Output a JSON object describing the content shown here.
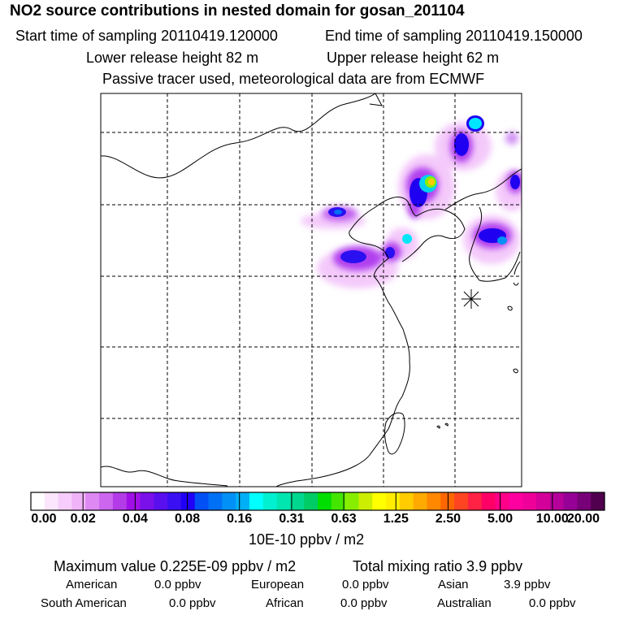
{
  "header": {
    "title": "NO2 source contributions in nested domain for gosan_201104",
    "start_time": "Start time of sampling 20110419.120000",
    "end_time": "End time of sampling 20110419.150000",
    "lower_release": "Lower release height   82 m",
    "upper_release": "Upper release height   62 m",
    "tracer_note": "Passive tracer used, meteorological data are from ECMWF"
  },
  "colorbar": {
    "colors": [
      "#ffffff",
      "#fbe6fd",
      "#f6cdfb",
      "#f0b3f8",
      "#dd88f3",
      "#cc66ee",
      "#b43ce8",
      "#a010e6",
      "#7a10ea",
      "#5a10ee",
      "#3a10f2",
      "#2000f6",
      "#0050f6",
      "#0070f6",
      "#0090f6",
      "#00b0f6",
      "#00ffff",
      "#00f0d0",
      "#00e6b0",
      "#00d890",
      "#00cc66",
      "#00dd00",
      "#44e600",
      "#88ee00",
      "#ccee00",
      "#ffff00",
      "#ffee00",
      "#ffcc00",
      "#ffaa00",
      "#ff8800",
      "#ff6600",
      "#ff4422",
      "#ff2244",
      "#ff0066",
      "#ff0088",
      "#ff00a0",
      "#ee0099",
      "#d4009a",
      "#b5009a",
      "#960096",
      "#780078",
      "#50004e"
    ],
    "ticks": [
      "0.00",
      "0.02",
      "0.04",
      "0.08",
      "0.16",
      "0.31",
      "0.63",
      "1.25",
      "2.50",
      "5.00",
      "10.00",
      "20.00"
    ],
    "units": "10E-10 ppbv / m2"
  },
  "summary": {
    "max_value": "Maximum value  0.225E-09 ppbv / m2",
    "total_mixing": "Total mixing ratio        3.9 ppbv"
  },
  "regions": {
    "american_label": "American",
    "american_value": "0.0 ppbv",
    "european_label": "European",
    "european_value": "0.0 ppbv",
    "asian_label": "Asian",
    "asian_value": "3.9 ppbv",
    "south_american_label": "South American",
    "south_american_value": "0.0 ppbv",
    "african_label": "African",
    "african_value": "0.0 ppbv",
    "australian_label": "Australian",
    "australian_value": "0.0 ppbv"
  }
}
